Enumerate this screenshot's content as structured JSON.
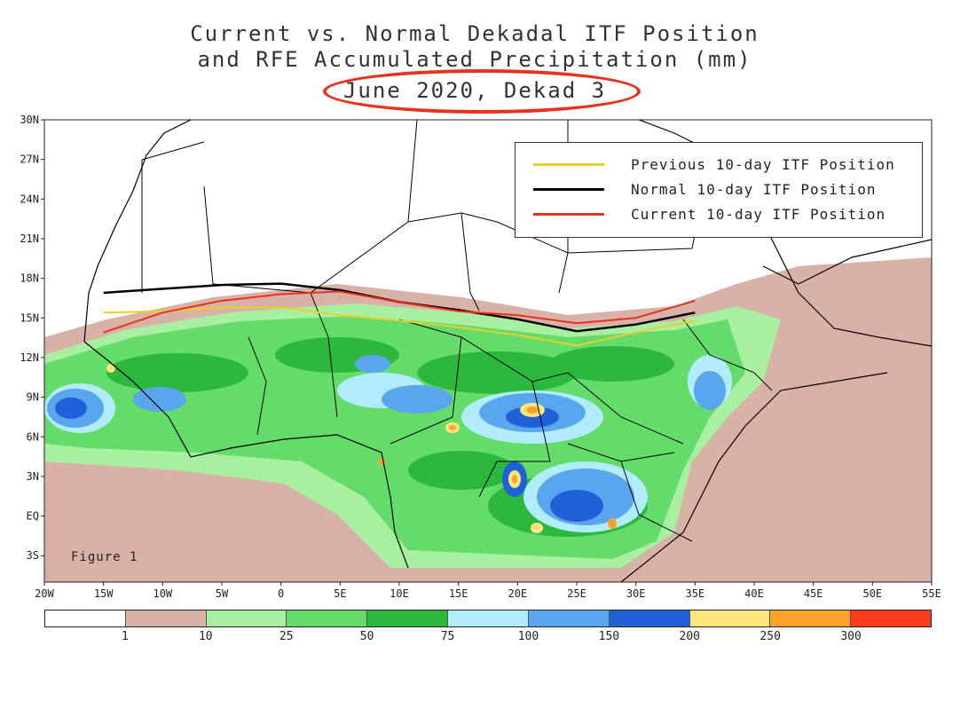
{
  "title": {
    "line1": "Current vs. Normal Dekadal ITF Position",
    "line2": "and RFE Accumulated Precipitation (mm)",
    "line3": "June 2020, Dekad 3"
  },
  "colors": {
    "previous_line": "#e8d02c",
    "normal_line": "#000000",
    "current_line": "#e8321e",
    "highlight_oval": "#e8321e"
  },
  "map": {
    "lat_labels": [
      "30N",
      "27N",
      "24N",
      "21N",
      "18N",
      "15N",
      "12N",
      "9N",
      "6N",
      "3N",
      "EQ",
      "3S"
    ],
    "lat_values": [
      30,
      27,
      24,
      21,
      18,
      15,
      12,
      9,
      6,
      3,
      0,
      -3
    ],
    "lon_labels": [
      "20W",
      "15W",
      "10W",
      "5W",
      "0",
      "5E",
      "10E",
      "15E",
      "20E",
      "25E",
      "30E",
      "35E",
      "40E",
      "45E",
      "50E",
      "55E"
    ],
    "lon_values": [
      -20,
      -15,
      -10,
      -5,
      0,
      5,
      10,
      15,
      20,
      25,
      30,
      35,
      40,
      45,
      50,
      55
    ],
    "lat_range": [
      -5,
      30
    ],
    "lon_range": [
      -20,
      55
    ],
    "figure_label": "Figure 1"
  },
  "legend": {
    "items": [
      {
        "label": "Previous 10-day ITF Position",
        "color": "#e8d02c"
      },
      {
        "label": "Normal 10-day ITF Position",
        "color": "#000000"
      },
      {
        "label": "Current 10-day ITF Position",
        "color": "#e8321e"
      }
    ]
  },
  "colorbar": {
    "colors": [
      "#ffffff",
      "#d8b2a6",
      "#a8f0a0",
      "#64dc6a",
      "#2cb83e",
      "#b0ecfc",
      "#5aa6ee",
      "#2060d8",
      "#fce67c",
      "#fca22a",
      "#f83c1c"
    ],
    "labels": [
      "1",
      "10",
      "25",
      "50",
      "75",
      "100",
      "150",
      "200",
      "250",
      "300"
    ]
  },
  "itf_lines": {
    "previous": [
      [
        -15,
        15.4
      ],
      [
        -10,
        15.5
      ],
      [
        -5,
        15.8
      ],
      [
        0,
        15.8
      ],
      [
        5,
        15.2
      ],
      [
        10,
        14.8
      ],
      [
        15,
        14.3
      ],
      [
        20,
        13.7
      ],
      [
        25,
        12.9
      ],
      [
        30,
        13.9
      ],
      [
        35,
        14.8
      ]
    ],
    "normal": [
      [
        -15,
        16.9
      ],
      [
        -10,
        17.2
      ],
      [
        -5,
        17.5
      ],
      [
        0,
        17.6
      ],
      [
        5,
        17.1
      ],
      [
        10,
        16.2
      ],
      [
        15,
        15.6
      ],
      [
        20,
        14.9
      ],
      [
        25,
        14.0
      ],
      [
        30,
        14.5
      ],
      [
        35,
        15.4
      ]
    ],
    "current": [
      [
        -15,
        13.9
      ],
      [
        -10,
        15.4
      ],
      [
        -5,
        16.3
      ],
      [
        0,
        16.8
      ],
      [
        5,
        17.0
      ],
      [
        10,
        16.2
      ],
      [
        15,
        15.5
      ],
      [
        20,
        15.2
      ],
      [
        25,
        14.6
      ],
      [
        30,
        15.0
      ],
      [
        35,
        16.3
      ]
    ]
  }
}
